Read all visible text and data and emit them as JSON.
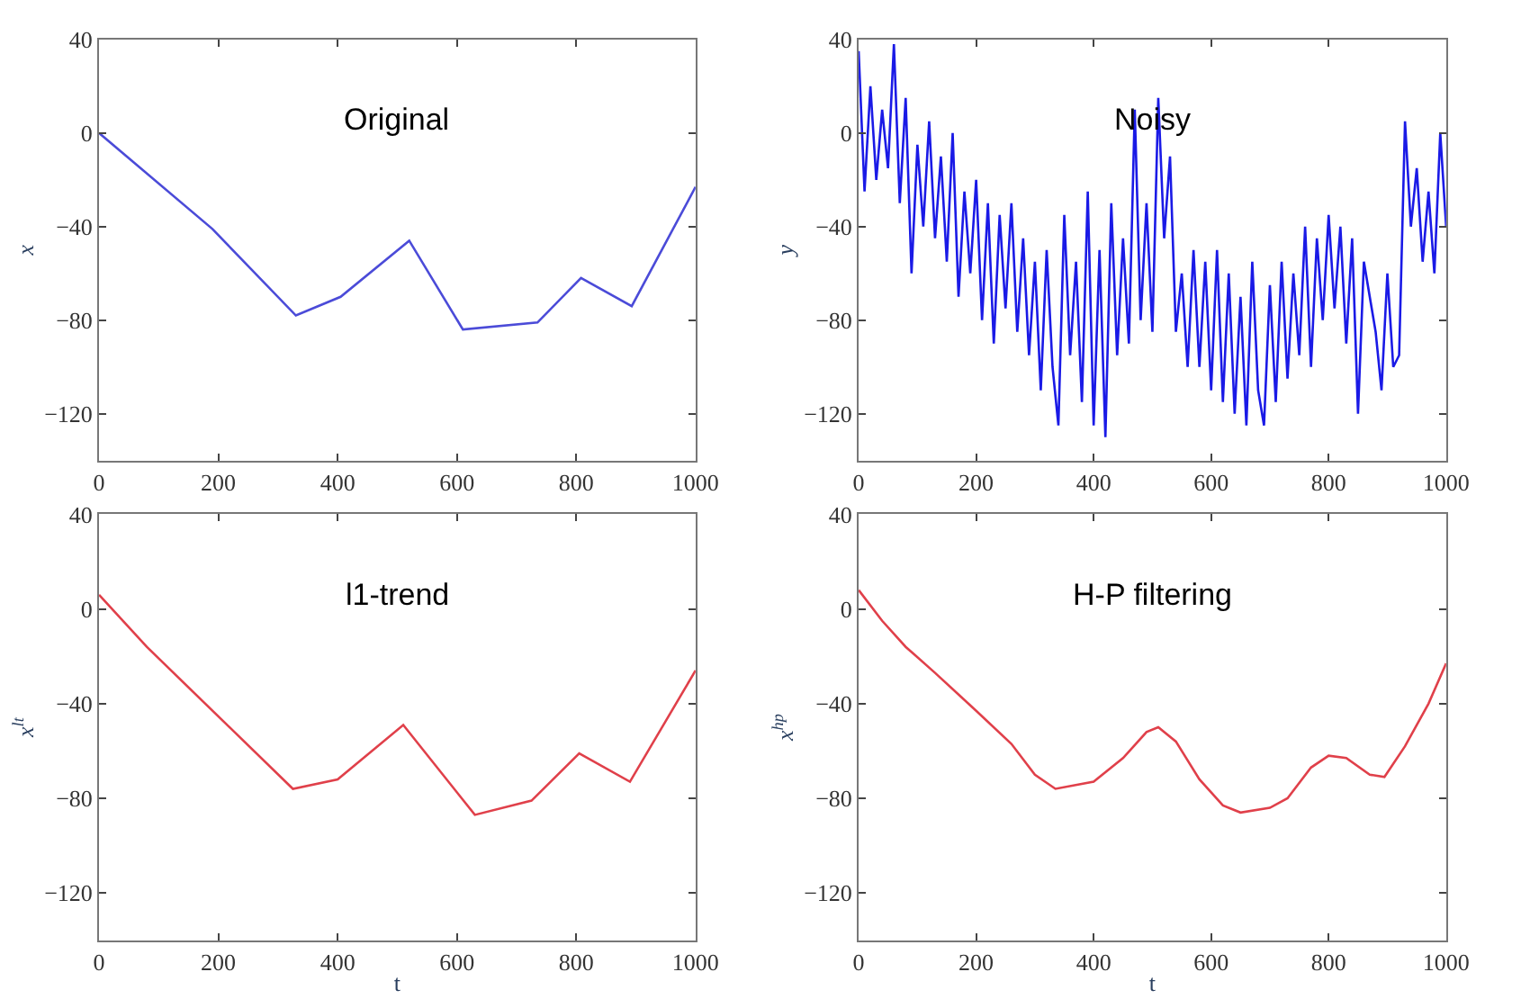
{
  "chart_data": [
    {
      "type": "line",
      "title": "Original",
      "ylabel": "x",
      "xlim": [
        0,
        1000
      ],
      "ylim": [
        -140,
        40
      ],
      "xticks": [
        0,
        200,
        400,
        600,
        800,
        1000
      ],
      "yticks": [
        40,
        0,
        -40,
        -80,
        -120
      ],
      "series": [
        {
          "color": "#4b4bd8",
          "x": [
            0,
            190,
            330,
            405,
            520,
            610,
            735,
            808,
            893,
            1000
          ],
          "values": [
            0,
            -41,
            -78,
            -70,
            -46,
            -84,
            -81,
            -62,
            -74,
            -23
          ]
        }
      ]
    },
    {
      "type": "line",
      "title": "Noisy",
      "ylabel": "y",
      "xlim": [
        0,
        1000
      ],
      "ylim": [
        -140,
        40
      ],
      "xticks": [
        0,
        200,
        400,
        600,
        800,
        1000
      ],
      "yticks": [
        40,
        0,
        -40,
        -80,
        -120
      ],
      "series": [
        {
          "color": "#1a1ae6",
          "x": [
            0,
            10,
            20,
            30,
            40,
            50,
            60,
            70,
            80,
            90,
            100,
            110,
            120,
            130,
            140,
            150,
            160,
            170,
            180,
            190,
            200,
            210,
            220,
            230,
            240,
            250,
            260,
            270,
            280,
            290,
            300,
            310,
            320,
            330,
            340,
            350,
            360,
            370,
            380,
            390,
            400,
            410,
            420,
            430,
            440,
            450,
            460,
            470,
            480,
            490,
            500,
            510,
            520,
            530,
            540,
            550,
            560,
            570,
            580,
            590,
            600,
            610,
            620,
            630,
            640,
            650,
            660,
            670,
            680,
            690,
            700,
            710,
            720,
            730,
            740,
            750,
            760,
            770,
            780,
            790,
            800,
            810,
            820,
            830,
            840,
            850,
            860,
            870,
            880,
            890,
            900,
            910,
            920,
            930,
            940,
            950,
            960,
            970,
            980,
            990,
            1000
          ],
          "values": [
            35,
            -25,
            20,
            -20,
            10,
            -15,
            38,
            -30,
            15,
            -60,
            -5,
            -40,
            5,
            -45,
            -10,
            -55,
            0,
            -70,
            -25,
            -60,
            -20,
            -80,
            -30,
            -90,
            -35,
            -75,
            -30,
            -85,
            -45,
            -95,
            -55,
            -110,
            -50,
            -100,
            -125,
            -35,
            -95,
            -55,
            -115,
            -25,
            -125,
            -50,
            -130,
            -30,
            -95,
            -45,
            -90,
            10,
            -80,
            -30,
            -85,
            15,
            -45,
            -10,
            -85,
            -60,
            -100,
            -50,
            -100,
            -55,
            -110,
            -50,
            -115,
            -60,
            -120,
            -70,
            -125,
            -55,
            -110,
            -125,
            -65,
            -115,
            -55,
            -105,
            -60,
            -95,
            -40,
            -100,
            -45,
            -80,
            -35,
            -75,
            -40,
            -90,
            -45,
            -120,
            -55,
            -70,
            -85,
            -110,
            -60,
            -100,
            -95,
            5,
            -40,
            -15,
            -55,
            -25,
            -60,
            0,
            -40
          ]
        }
      ]
    },
    {
      "type": "line",
      "title": "l1-trend",
      "xlabel": "t",
      "ylabel": "x$^{lt}$",
      "xlim": [
        0,
        1000
      ],
      "ylim": [
        -140,
        40
      ],
      "xticks": [
        0,
        200,
        400,
        600,
        800,
        1000
      ],
      "yticks": [
        40,
        0,
        -40,
        -80,
        -120
      ],
      "series": [
        {
          "color": "#e0404a",
          "x": [
            0,
            80,
            325,
            400,
            510,
            630,
            725,
            805,
            890,
            1000
          ],
          "values": [
            6,
            -16,
            -76,
            -72,
            -49,
            -87,
            -81,
            -61,
            -73,
            -26
          ]
        }
      ]
    },
    {
      "type": "line",
      "title": "H-P filtering",
      "xlabel": "t",
      "ylabel": "x$^{hp}$",
      "xlim": [
        0,
        1000
      ],
      "ylim": [
        -140,
        40
      ],
      "xticks": [
        0,
        200,
        400,
        600,
        800,
        1000
      ],
      "yticks": [
        40,
        0,
        -40,
        -80,
        -120
      ],
      "series": [
        {
          "color": "#e0404a",
          "x": [
            0,
            40,
            80,
            130,
            200,
            260,
            300,
            335,
            400,
            450,
            490,
            510,
            540,
            580,
            620,
            650,
            700,
            730,
            770,
            800,
            830,
            870,
            895,
            930,
            970,
            1000
          ],
          "values": [
            8,
            -5,
            -16,
            -27,
            -43,
            -57,
            -70,
            -76,
            -73,
            -63,
            -52,
            -50,
            -56,
            -72,
            -83,
            -86,
            -84,
            -80,
            -67,
            -62,
            -63,
            -70,
            -71,
            -58,
            -40,
            -23
          ]
        }
      ]
    }
  ]
}
